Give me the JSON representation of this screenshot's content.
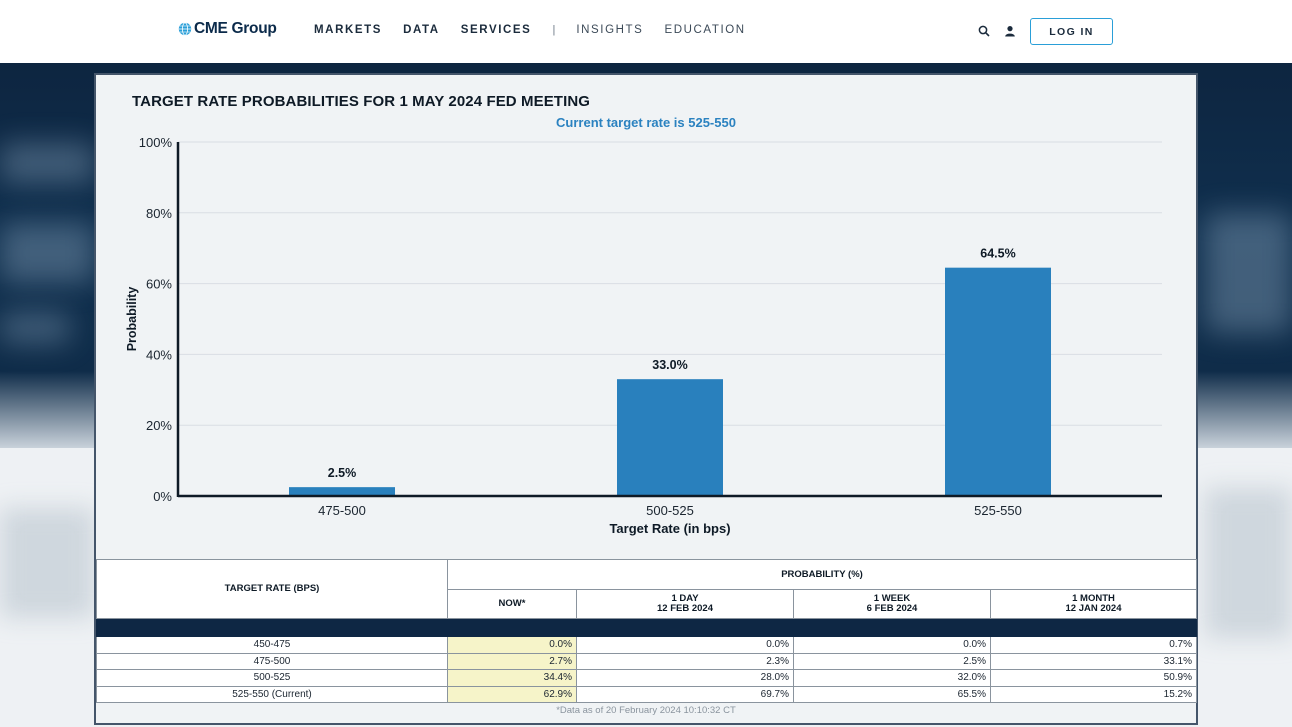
{
  "header": {
    "logo_text": "CME Group",
    "nav": [
      {
        "label": "MARKETS",
        "style": "bold"
      },
      {
        "label": "DATA",
        "style": "bold"
      },
      {
        "label": "SERVICES",
        "style": "bold"
      },
      {
        "label": "INSIGHTS",
        "style": "light"
      },
      {
        "label": "EDUCATION",
        "style": "light"
      }
    ],
    "separator": "|",
    "login_label": "LOG IN",
    "icons": [
      "search-icon",
      "user-icon"
    ],
    "accent_color": "#2a9fd8"
  },
  "chart_data": {
    "type": "bar",
    "title": "TARGET RATE PROBABILITIES FOR 1 MAY 2024 FED MEETING",
    "subtitle": "Current target rate is 525-550",
    "categories": [
      "475-500",
      "500-525",
      "525-550"
    ],
    "values": [
      2.5,
      33.0,
      64.5
    ],
    "data_labels": [
      "2.5%",
      "33.0%",
      "64.5%"
    ],
    "xlabel": "Target Rate (in bps)",
    "ylabel": "Probability",
    "ylim": [
      0,
      100
    ],
    "yticks": [
      0,
      20,
      40,
      60,
      80,
      100
    ],
    "ytick_labels": [
      "0%",
      "20%",
      "40%",
      "60%",
      "80%",
      "100%"
    ],
    "bar_color": "#2980bd",
    "grid": true,
    "legend": "none"
  },
  "table": {
    "rate_header": "TARGET RATE (BPS)",
    "prob_header": "PROBABILITY (%)",
    "columns": [
      {
        "line1": "NOW*",
        "line2": ""
      },
      {
        "line1": "1 DAY",
        "line2": "12 FEB 2024"
      },
      {
        "line1": "1 WEEK",
        "line2": "6 FEB 2024"
      },
      {
        "line1": "1 MONTH",
        "line2": "12 JAN 2024"
      }
    ],
    "rows": [
      {
        "rate": "450-475",
        "now": "0.0%",
        "day": "0.0%",
        "week": "0.0%",
        "month": "0.7%"
      },
      {
        "rate": "475-500",
        "now": "2.7%",
        "day": "2.3%",
        "week": "2.5%",
        "month": "33.1%"
      },
      {
        "rate": "500-525",
        "now": "34.4%",
        "day": "28.0%",
        "week": "32.0%",
        "month": "50.9%"
      },
      {
        "rate": "525-550 (Current)",
        "now": "62.9%",
        "day": "69.7%",
        "week": "65.5%",
        "month": "15.2%"
      }
    ],
    "footnote": "*Data as of 20 February 2024 10:10:32 CT",
    "highlight_color": "#f6f4c9"
  }
}
